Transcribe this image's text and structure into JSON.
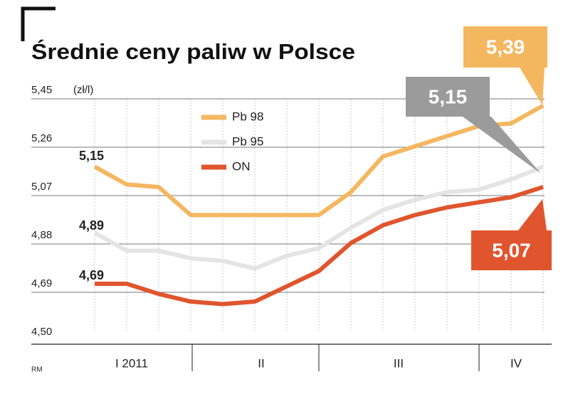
{
  "chart_data": {
    "type": "line",
    "title": "Średnie ceny paliw w Polsce",
    "y_label": "(zł/l)",
    "source": "RM",
    "categories": [
      null,
      "I 2011",
      null,
      null,
      null,
      "II",
      null,
      null,
      null,
      null,
      "III",
      null,
      null,
      "IV",
      null
    ],
    "series": [
      {
        "name": "Pb 98",
        "color": "#f4b760",
        "values": [
          5.15,
          5.08,
          5.07,
          4.96,
          4.96,
          4.96,
          4.96,
          4.96,
          5.05,
          5.19,
          5.23,
          5.27,
          5.31,
          5.32,
          5.39
        ],
        "value_labels": [
          "5,15",
          null,
          null,
          null,
          null,
          null,
          null,
          null,
          null,
          null,
          null,
          null,
          null,
          null,
          "5,39"
        ]
      },
      {
        "name": "Pb 95",
        "color": "#e4e4e4",
        "values": [
          4.89,
          4.82,
          4.82,
          4.79,
          4.78,
          4.75,
          4.8,
          4.83,
          4.91,
          4.98,
          5.02,
          5.05,
          5.06,
          5.1,
          5.15
        ],
        "value_labels": [
          "4,89",
          null,
          null,
          null,
          null,
          null,
          null,
          null,
          null,
          null,
          null,
          null,
          null,
          null,
          "5,15"
        ]
      },
      {
        "name": "ON",
        "color": "#e0552d",
        "values": [
          4.69,
          4.69,
          4.65,
          4.62,
          4.61,
          4.62,
          4.68,
          4.74,
          4.85,
          4.92,
          4.96,
          4.99,
          5.01,
          5.03,
          5.07
        ],
        "value_labels": [
          "4,69",
          null,
          null,
          null,
          null,
          null,
          null,
          null,
          null,
          null,
          null,
          null,
          null,
          null,
          "5,07"
        ]
      }
    ],
    "ylim": [
      4.5,
      5.45
    ],
    "yticks": [
      {
        "value": 4.5,
        "label": "4,50"
      },
      {
        "value": 4.69,
        "label": "4,69"
      },
      {
        "value": 4.88,
        "label": "4,88"
      },
      {
        "value": 5.07,
        "label": "5,07"
      },
      {
        "value": 5.26,
        "label": "5,26"
      },
      {
        "value": 5.45,
        "label": "5,45"
      }
    ],
    "grid": true
  }
}
